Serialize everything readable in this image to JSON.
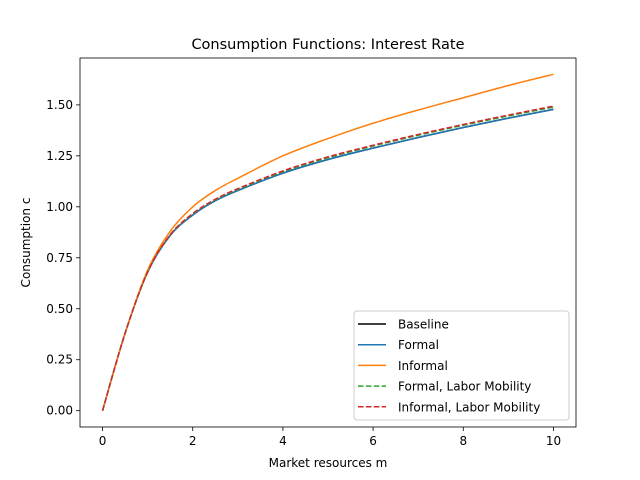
{
  "chart_data": {
    "type": "line",
    "title": "Consumption Functions: Interest Rate",
    "xlabel": "Market resources m",
    "ylabel": "Consumption c",
    "xlim": [
      -0.5,
      10.5
    ],
    "ylim": [
      -0.08,
      1.73
    ],
    "xticks": [
      0,
      2,
      4,
      6,
      8,
      10
    ],
    "xtick_labels": [
      "0",
      "2",
      "4",
      "6",
      "8",
      "10"
    ],
    "yticks": [
      0.0,
      0.25,
      0.5,
      0.75,
      1.0,
      1.25,
      1.5
    ],
    "ytick_labels": [
      "0.00",
      "0.25",
      "0.50",
      "0.75",
      "1.00",
      "1.25",
      "1.50"
    ],
    "grid": false,
    "legend_position": "lower-right",
    "x": [
      0,
      0.5,
      1,
      1.5,
      2,
      2.5,
      3,
      4,
      5,
      6,
      7,
      8,
      9,
      10
    ],
    "series": [
      {
        "name": "Baseline",
        "color": "#000000",
        "dash": "solid",
        "values": [
          0.0,
          0.38,
          0.68,
          0.86,
          0.96,
          1.03,
          1.08,
          1.165,
          1.232,
          1.288,
          1.34,
          1.389,
          1.435,
          1.478
        ]
      },
      {
        "name": "Formal",
        "color": "#1f77b4",
        "dash": "solid",
        "values": [
          0.0,
          0.38,
          0.68,
          0.86,
          0.96,
          1.03,
          1.08,
          1.165,
          1.232,
          1.288,
          1.34,
          1.389,
          1.435,
          1.478
        ]
      },
      {
        "name": "Informal",
        "color": "#ff7f0e",
        "dash": "solid",
        "values": [
          0.0,
          0.38,
          0.69,
          0.88,
          1.0,
          1.08,
          1.14,
          1.25,
          1.335,
          1.41,
          1.475,
          1.535,
          1.595,
          1.65
        ]
      },
      {
        "name": "Formal, Labor Mobility",
        "color": "#2ca02c",
        "dash": "dashed",
        "values": [
          0.0,
          0.38,
          0.68,
          0.862,
          0.965,
          1.035,
          1.086,
          1.173,
          1.241,
          1.298,
          1.351,
          1.4,
          1.446,
          1.489
        ]
      },
      {
        "name": "Informal, Labor Mobility",
        "color": "#d62728",
        "dash": "dashed",
        "values": [
          0.0,
          0.38,
          0.68,
          0.863,
          0.967,
          1.037,
          1.089,
          1.176,
          1.245,
          1.302,
          1.355,
          1.404,
          1.45,
          1.494
        ]
      }
    ]
  }
}
